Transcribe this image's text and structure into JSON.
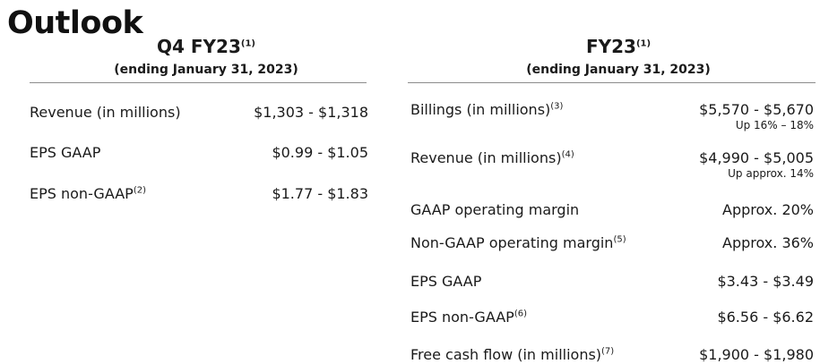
{
  "title": "Outlook",
  "q4": {
    "heading": "Q4 FY23",
    "heading_note": "(1)",
    "period": "(ending January 31, 2023)",
    "rows": [
      {
        "label": "Revenue (in millions)",
        "note": "",
        "value": "$1,303 - $1,318"
      },
      {
        "label": "EPS GAAP",
        "note": "",
        "value": "$0.99 - $1.05"
      },
      {
        "label": "EPS non-GAAP",
        "note": "(2)",
        "value": "$1.77 - $1.83"
      }
    ]
  },
  "fy": {
    "heading": "FY23",
    "heading_note": "(1)",
    "period": "(ending January 31, 2023)",
    "rows": [
      {
        "label": "Billings (in millions)",
        "note": "(3)",
        "value": "$5,570 - $5,670",
        "sub": "Up 16% – 18%"
      },
      {
        "label": "Revenue (in millions)",
        "note": "(4)",
        "value": "$4,990 - $5,005",
        "sub": "Up approx. 14%"
      },
      {
        "label": "GAAP operating margin",
        "note": "",
        "value": "Approx. 20%"
      },
      {
        "label": "Non-GAAP operating margin",
        "note": "(5)",
        "value": "Approx. 36%"
      },
      {
        "label": "EPS GAAP",
        "note": "",
        "value": "$3.43 - $3.49"
      },
      {
        "label": "EPS non-GAAP",
        "note": "(6)",
        "value": "$6.56 - $6.62"
      },
      {
        "label": "Free cash flow (in millions)",
        "note": "(7)",
        "value": "$1,900 - $1,980"
      }
    ]
  }
}
